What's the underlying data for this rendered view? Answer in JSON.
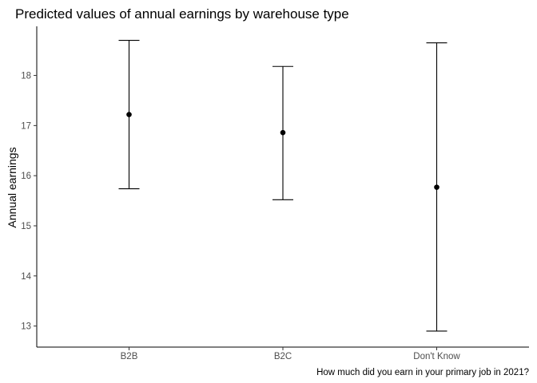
{
  "chart_data": {
    "type": "scatter",
    "title": "Predicted values of annual earnings by warehouse type",
    "xlabel": "",
    "ylabel": "Annual earnings",
    "caption": "How much did you earn in your primary job in 2021?",
    "categories": [
      "B2B",
      "B2C",
      "Don't Know"
    ],
    "values": [
      17.22,
      16.86,
      15.77
    ],
    "lower": [
      15.74,
      15.52,
      12.9
    ],
    "upper": [
      18.7,
      18.18,
      18.65
    ],
    "yticks": [
      13,
      14,
      15,
      16,
      17,
      18
    ],
    "ylim": [
      12.58,
      18.98
    ],
    "grid": false,
    "legend": "none",
    "colors": {
      "points": "#000000",
      "error_bars": "#000000",
      "tick_labels": "#4d4d4d"
    }
  }
}
